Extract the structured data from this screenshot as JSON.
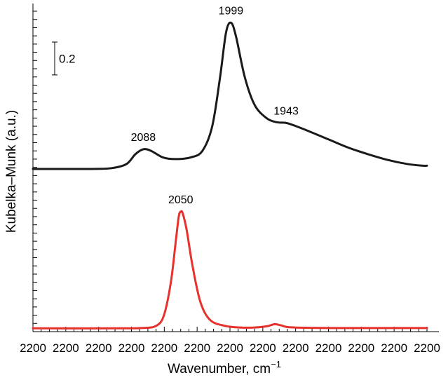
{
  "chart_data": {
    "type": "line",
    "xlabel": "Wavenumber, cm",
    "xlabel_superscript": "−1",
    "ylabel": "Kubelka–Munk (a.u.)",
    "x_tick_labels": [
      "2200",
      "2200",
      "2200",
      "2200",
      "2200",
      "2200",
      "2200",
      "2200",
      "2200",
      "2200",
      "2200",
      "2200",
      "2200"
    ],
    "x_axis_reversed": true,
    "xlim": [
      2200,
      1800
    ],
    "ylim": [
      0,
      1.95
    ],
    "y_minor_tick_step": 0.05,
    "scale_bar": {
      "label": "0.2",
      "value": 0.2
    },
    "grid": false,
    "legend": "none",
    "colors": {
      "upper_series": "#1a1a1a",
      "lower_series": "#e8302c"
    },
    "series": [
      {
        "color": "#1a1a1a",
        "points": [
          [
            2200,
            0.99
          ],
          [
            2160,
            0.99
          ],
          [
            2140,
            0.99
          ],
          [
            2120,
            0.995
          ],
          [
            2105,
            1.02
          ],
          [
            2096,
            1.08
          ],
          [
            2088,
            1.11
          ],
          [
            2080,
            1.1
          ],
          [
            2068,
            1.06
          ],
          [
            2055,
            1.05
          ],
          [
            2040,
            1.06
          ],
          [
            2028,
            1.1
          ],
          [
            2018,
            1.25
          ],
          [
            2010,
            1.55
          ],
          [
            2004,
            1.82
          ],
          [
            1999,
            1.88
          ],
          [
            1994,
            1.8
          ],
          [
            1985,
            1.55
          ],
          [
            1975,
            1.38
          ],
          [
            1963,
            1.3
          ],
          [
            1953,
            1.275
          ],
          [
            1943,
            1.27
          ],
          [
            1935,
            1.255
          ],
          [
            1920,
            1.22
          ],
          [
            1900,
            1.17
          ],
          [
            1880,
            1.12
          ],
          [
            1860,
            1.08
          ],
          [
            1840,
            1.045
          ],
          [
            1820,
            1.02
          ],
          [
            1805,
            1.01
          ],
          [
            1800,
            1.01
          ]
        ]
      },
      {
        "color": "#e8302c",
        "points": [
          [
            2200,
            0.02
          ],
          [
            2120,
            0.02
          ],
          [
            2090,
            0.022
          ],
          [
            2075,
            0.035
          ],
          [
            2067,
            0.1
          ],
          [
            2060,
            0.3
          ],
          [
            2055,
            0.55
          ],
          [
            2052,
            0.7
          ],
          [
            2050,
            0.73
          ],
          [
            2048,
            0.72
          ],
          [
            2044,
            0.62
          ],
          [
            2038,
            0.4
          ],
          [
            2030,
            0.18
          ],
          [
            2020,
            0.07
          ],
          [
            2005,
            0.035
          ],
          [
            1990,
            0.025
          ],
          [
            1975,
            0.025
          ],
          [
            1962,
            0.033
          ],
          [
            1955,
            0.045
          ],
          [
            1948,
            0.038
          ],
          [
            1938,
            0.026
          ],
          [
            1900,
            0.022
          ],
          [
            1800,
            0.022
          ]
        ]
      }
    ],
    "annotations": [
      {
        "text": "2088",
        "x": 2088,
        "y": 1.11
      },
      {
        "text": "1999",
        "x": 1999,
        "y": 1.88
      },
      {
        "text": "1943",
        "x": 1943,
        "y": 1.27
      },
      {
        "text": "2050",
        "x": 2050,
        "y": 0.73
      }
    ]
  }
}
